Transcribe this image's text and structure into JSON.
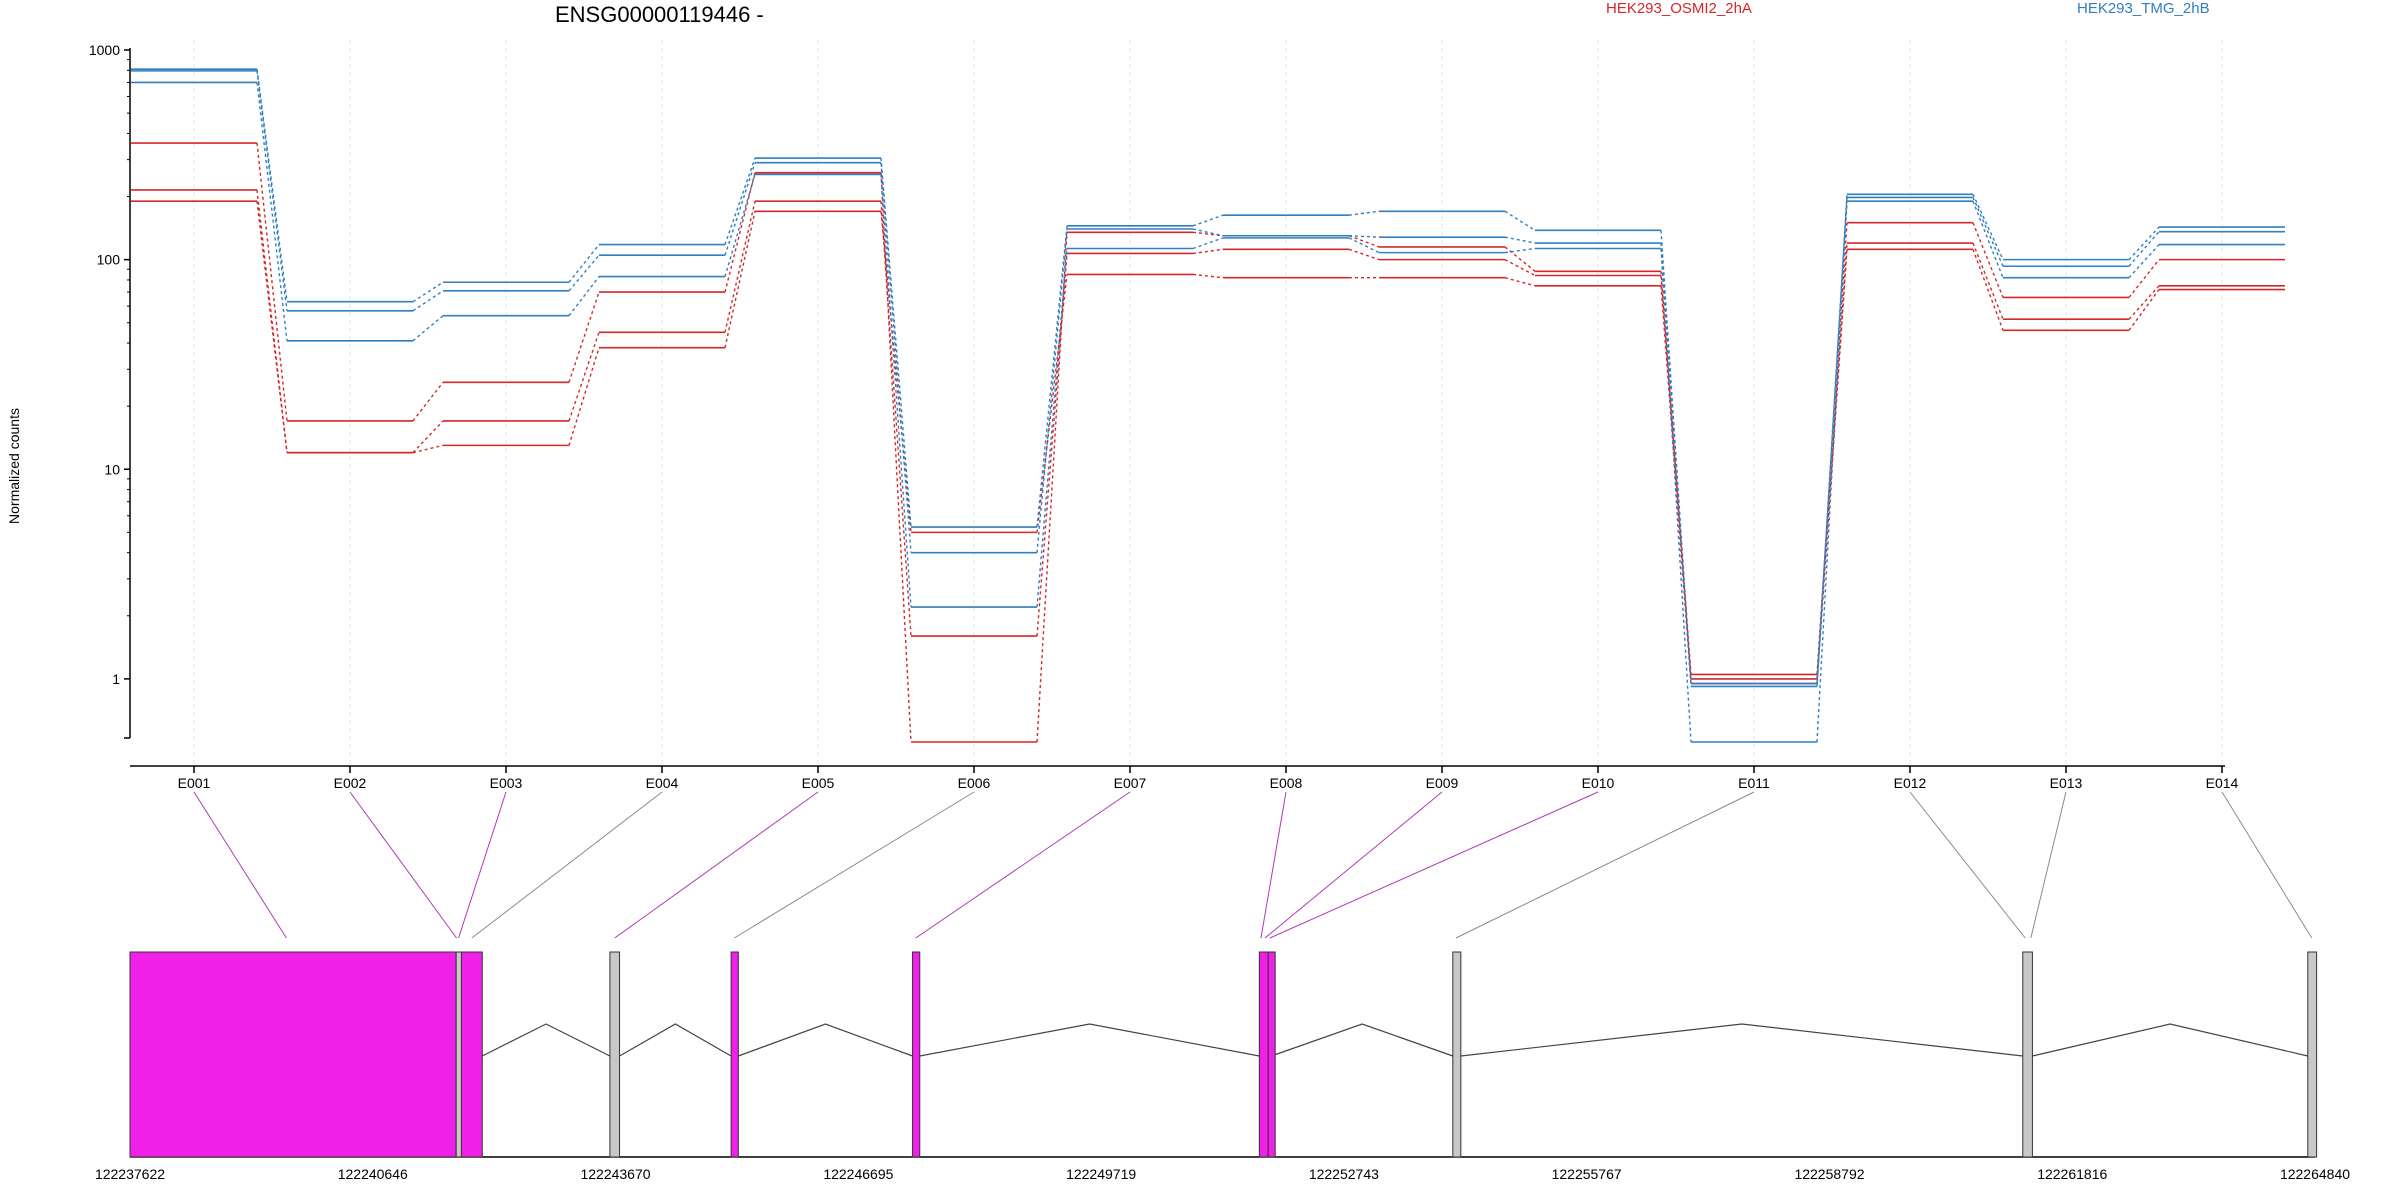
{
  "chart_data": {
    "type": "line",
    "title": "ENSG00000119446 -",
    "ylabel": "Normalized counts",
    "yscale": "log",
    "ylim": [
      0.5,
      1000
    ],
    "yticks": [
      "1000",
      "100",
      "10",
      "1"
    ],
    "categories": [
      "E001",
      "E002",
      "E003",
      "E004",
      "E005",
      "E006",
      "E007",
      "E008",
      "E009",
      "E010",
      "E011",
      "E012",
      "E013",
      "E014"
    ],
    "legend": [
      "HEK293_OSMI2_2hA",
      "HEK293_TMG_2hB"
    ],
    "colors": {
      "HEK293_OSMI2_2hA": "#d62728",
      "HEK293_TMG_2hB": "#2f7fc1",
      "exon_highlight": "#f020e8",
      "exon_plain": "#c8c8c8"
    },
    "series": [
      {
        "group": "HEK293_OSMI2_2hA",
        "values": [
          360,
          17,
          26,
          70,
          260,
          0.5,
          135,
          130,
          115,
          88,
          1.05,
          150,
          66,
          100
        ]
      },
      {
        "group": "HEK293_OSMI2_2hA",
        "values": [
          215,
          12,
          17,
          45,
          190,
          1.6,
          107,
          112,
          100,
          84,
          1.0,
          120,
          52,
          75
        ]
      },
      {
        "group": "HEK293_OSMI2_2hA",
        "values": [
          190,
          12,
          13,
          38,
          170,
          5.0,
          85,
          82,
          82,
          75,
          0.95,
          112,
          46,
          72
        ]
      },
      {
        "group": "HEK293_TMG_2hB",
        "values": [
          810,
          63,
          78,
          118,
          305,
          5.3,
          145,
          163,
          170,
          138,
          0.95,
          205,
          100,
          143
        ]
      },
      {
        "group": "HEK293_TMG_2hB",
        "values": [
          795,
          57,
          71,
          105,
          290,
          4.0,
          140,
          130,
          128,
          120,
          0.92,
          198,
          93,
          136
        ]
      },
      {
        "group": "HEK293_TMG_2hB",
        "values": [
          700,
          41,
          54,
          83,
          255,
          2.2,
          113,
          127,
          108,
          113,
          0.5,
          190,
          82,
          118
        ]
      }
    ],
    "genomic_axis": {
      "ticks": [
        "122237622",
        "122240646",
        "122243670",
        "122246695",
        "122249719",
        "122252743",
        "122255767",
        "122258792",
        "122261816",
        "122264840"
      ],
      "range": [
        122237622,
        122264840
      ],
      "exons": [
        {
          "start": 122237622,
          "end": 122241685,
          "highlight": true
        },
        {
          "start": 122241685,
          "end": 122241750,
          "highlight": false
        },
        {
          "start": 122241750,
          "end": 122242010,
          "highlight": true
        },
        {
          "start": 122243600,
          "end": 122243720,
          "highlight": false
        },
        {
          "start": 122245110,
          "end": 122245200,
          "highlight": true
        },
        {
          "start": 122247370,
          "end": 122247460,
          "highlight": true
        },
        {
          "start": 122251690,
          "end": 122251800,
          "highlight": true
        },
        {
          "start": 122251800,
          "end": 122251840,
          "highlight": true
        },
        {
          "start": 122254100,
          "end": 122254200,
          "highlight": false
        },
        {
          "start": 122261200,
          "end": 122261320,
          "highlight": false
        },
        {
          "start": 122264750,
          "end": 122264860,
          "highlight": false
        }
      ],
      "bin_links": [
        {
          "bin": "E001",
          "pos": 122239570,
          "highlight": true
        },
        {
          "bin": "E002",
          "pos": 122241690,
          "highlight": true
        },
        {
          "bin": "E003",
          "pos": 122241715,
          "highlight": true
        },
        {
          "bin": "E004",
          "pos": 122241880,
          "highlight": false
        },
        {
          "bin": "E005",
          "pos": 122243660,
          "highlight": true
        },
        {
          "bin": "E006",
          "pos": 122245150,
          "highlight": false
        },
        {
          "bin": "E007",
          "pos": 122247410,
          "highlight": true
        },
        {
          "bin": "E008",
          "pos": 122251710,
          "highlight": true
        },
        {
          "bin": "E009",
          "pos": 122251760,
          "highlight": true
        },
        {
          "bin": "E010",
          "pos": 122251820,
          "highlight": true
        },
        {
          "bin": "E011",
          "pos": 122254140,
          "highlight": false
        },
        {
          "bin": "E012",
          "pos": 122261230,
          "highlight": false
        },
        {
          "bin": "E013",
          "pos": 122261300,
          "highlight": false
        },
        {
          "bin": "E014",
          "pos": 122264800,
          "highlight": false
        }
      ]
    }
  }
}
